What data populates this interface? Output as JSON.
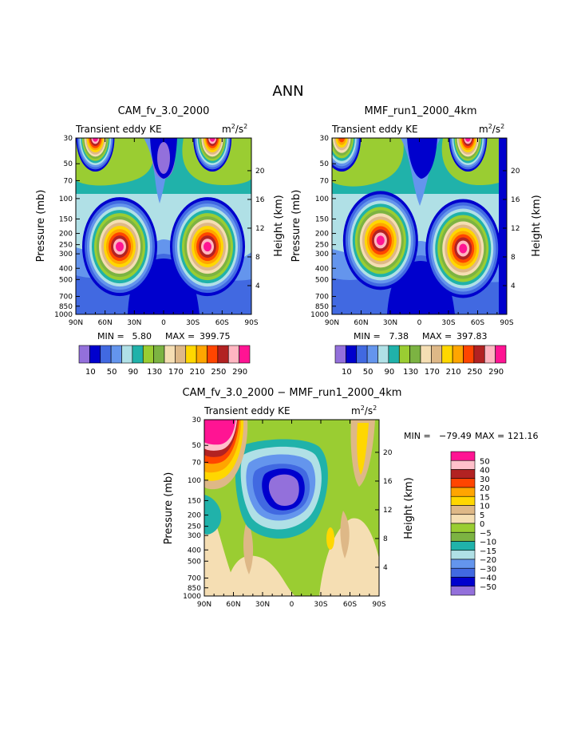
{
  "figure": {
    "title": "ANN"
  },
  "colors": {
    "top": [
      "#9370db",
      "#0000cd",
      "#4169e1",
      "#6495ed",
      "#b0e0e6",
      "#20b2aa",
      "#9acd32",
      "#7cb342",
      "#f5deb3",
      "#deb887",
      "#ffd700",
      "#ffa500",
      "#ff4500",
      "#b22222",
      "#ffb6c1",
      "#ff1493"
    ],
    "diff": [
      "#9370db",
      "#0000cd",
      "#4169e1",
      "#6495ed",
      "#b0e0e6",
      "#20b2aa",
      "#7cb342",
      "#9acd32",
      "#f5deb3",
      "#deb887",
      "#ffd700",
      "#ffa500",
      "#ff4500",
      "#b22222",
      "#ffc0cb",
      "#ff1493"
    ]
  },
  "chart_data": [
    {
      "type": "heatmap",
      "title": "CAM_fv_3.0_2000",
      "subtitle": "Transient eddy KE",
      "units_base": "m",
      "units_exp1": "2",
      "units_mid": "/s",
      "units_exp2": "2",
      "ylabel": "Pressure (mb)",
      "ylabel_right": "Height (km)",
      "xlim": [
        90,
        -90
      ],
      "xticks": [
        "90N",
        "60N",
        "30N",
        "0",
        "30S",
        "60S",
        "90S"
      ],
      "yticks_left": [
        "30",
        "50",
        "70",
        "100",
        "150",
        "200",
        "250",
        "300",
        "400",
        "500",
        "700",
        "850",
        "1000"
      ],
      "yticks_right": [
        "20",
        "16",
        "12",
        "8",
        "4"
      ],
      "min_label": "MIN =",
      "min_value": "5.80",
      "max_label": "MAX =",
      "max_value": "399.75",
      "colorbar_labels": [
        "10",
        "50",
        "90",
        "130",
        "170",
        "210",
        "250",
        "290"
      ],
      "contour_levels": [
        10,
        30,
        50,
        70,
        90,
        110,
        130,
        150,
        170,
        190,
        210,
        230,
        250,
        270,
        290
      ],
      "jets": [
        {
          "lat": 45,
          "pressure": 260,
          "peak": 400
        },
        {
          "lat": -45,
          "pressure": 260,
          "peak": 390
        },
        {
          "lat": 70,
          "pressure": 30,
          "peak": 300
        },
        {
          "lat": -50,
          "pressure": 30,
          "peak": 300
        }
      ]
    },
    {
      "type": "heatmap",
      "title": "MMF_run1_2000_4km",
      "subtitle": "Transient eddy KE",
      "units_base": "m",
      "units_exp1": "2",
      "units_mid": "/s",
      "units_exp2": "2",
      "ylabel": "Pressure (mb)",
      "ylabel_right": "Height (km)",
      "xlim": [
        90,
        -90
      ],
      "xticks": [
        "90N",
        "60N",
        "30N",
        "0",
        "30S",
        "60S",
        "90S"
      ],
      "yticks_left": [
        "30",
        "50",
        "70",
        "100",
        "150",
        "200",
        "250",
        "300",
        "400",
        "500",
        "700",
        "850",
        "1000"
      ],
      "yticks_right": [
        "20",
        "16",
        "12",
        "8",
        "4"
      ],
      "min_label": "MIN =",
      "min_value": "7.38",
      "max_label": "MAX =",
      "max_value": "397.83",
      "colorbar_labels": [
        "10",
        "50",
        "90",
        "130",
        "170",
        "210",
        "250",
        "290"
      ],
      "contour_levels": [
        10,
        30,
        50,
        70,
        90,
        110,
        130,
        150,
        170,
        190,
        210,
        230,
        250,
        270,
        290
      ],
      "jets": [
        {
          "lat": 40,
          "pressure": 230,
          "peak": 390
        },
        {
          "lat": -45,
          "pressure": 270,
          "peak": 398
        },
        {
          "lat": 80,
          "pressure": 30,
          "peak": 240
        },
        {
          "lat": -50,
          "pressure": 30,
          "peak": 300
        }
      ]
    },
    {
      "type": "heatmap",
      "title": "CAM_fv_3.0_2000 − MMF_run1_2000_4km",
      "subtitle": "Transient eddy KE",
      "units_base": "m",
      "units_exp1": "2",
      "units_mid": "/s",
      "units_exp2": "2",
      "ylabel": "Pressure (mb)",
      "ylabel_right": "Height (km)",
      "xlim": [
        90,
        -90
      ],
      "xticks": [
        "90N",
        "60N",
        "30N",
        "0",
        "30S",
        "60S",
        "90S"
      ],
      "yticks_left": [
        "30",
        "50",
        "70",
        "100",
        "150",
        "200",
        "250",
        "300",
        "400",
        "500",
        "700",
        "850",
        "1000"
      ],
      "yticks_right": [
        "20",
        "16",
        "12",
        "8",
        "4"
      ],
      "min_label": "MIN =",
      "min_value": "−79.49",
      "max_label": "MAX =",
      "max_value": "121.16",
      "colorbar_labels": [
        "50",
        "40",
        "30",
        "20",
        "15",
        "10",
        "5",
        "0",
        "−5",
        "−10",
        "−15",
        "−20",
        "−30",
        "−40",
        "−50"
      ],
      "contour_levels": [
        -50,
        -40,
        -30,
        -20,
        -15,
        -10,
        -5,
        0,
        5,
        10,
        15,
        20,
        30,
        40,
        50
      ]
    }
  ]
}
